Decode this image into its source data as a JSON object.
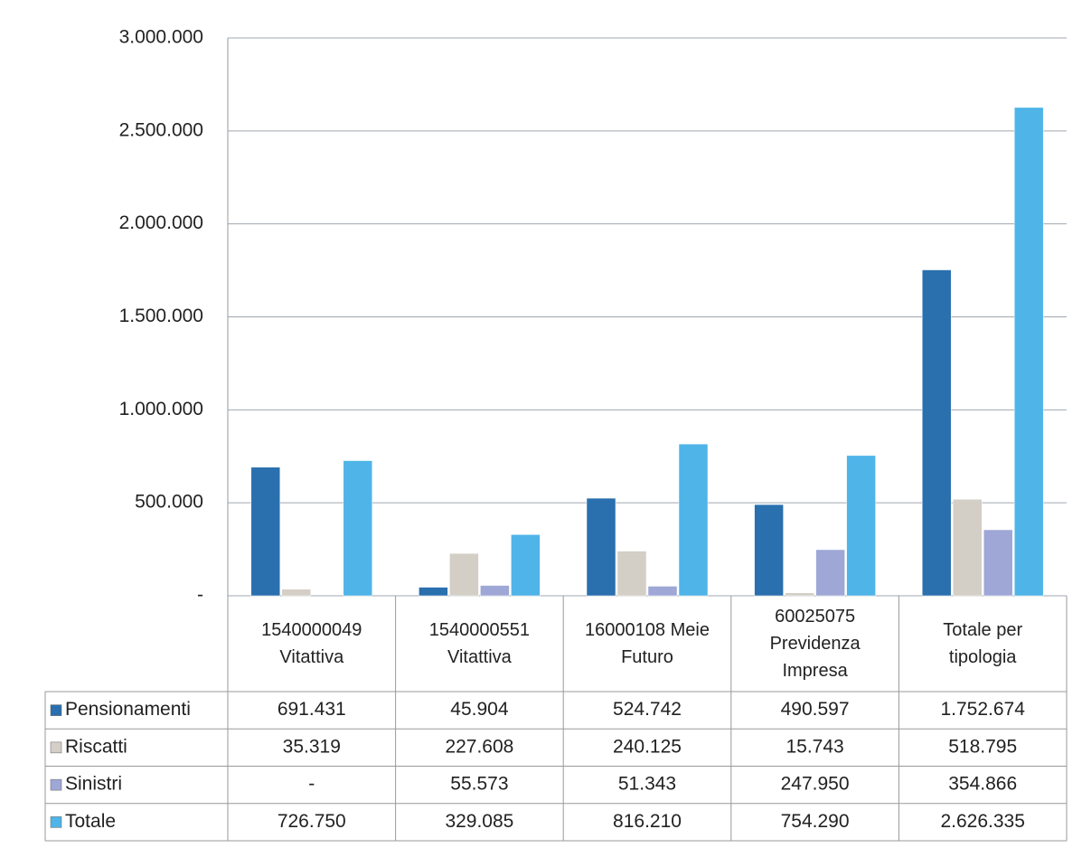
{
  "chart_data": {
    "type": "bar",
    "categories": [
      "1540000049 Vitattiva",
      "1540000551 Vitattiva",
      "16000108 Meie Futuro",
      "60025075 Previdenza Impresa",
      "Totale per tipologia"
    ],
    "series": [
      {
        "name": "Pensionamenti",
        "color": "#2a6fae",
        "values": [
          691431,
          45904,
          524742,
          490597,
          1752674
        ],
        "value_labels": [
          "691.431",
          "45.904",
          "524.742",
          "490.597",
          "1.752.674"
        ]
      },
      {
        "name": "Riscatti",
        "color": "#d3cec6",
        "values": [
          35319,
          227608,
          240125,
          15743,
          518795
        ],
        "value_labels": [
          "35.319",
          "227.608",
          "240.125",
          "15.743",
          "518.795"
        ]
      },
      {
        "name": "Sinistri",
        "color": "#9ea7d6",
        "values": [
          null,
          55573,
          51343,
          247950,
          354866
        ],
        "value_labels": [
          "-",
          "55.573",
          "51.343",
          "247.950",
          "354.866"
        ]
      },
      {
        "name": "Totale",
        "color": "#4fb4e8",
        "values": [
          726750,
          329085,
          816210,
          754290,
          2626335
        ],
        "value_labels": [
          "726.750",
          "329.085",
          "816.210",
          "754.290",
          "2.626.335"
        ]
      }
    ],
    "ylim": [
      0,
      3000000
    ],
    "yticks": [
      {
        "value": 0,
        "label": "-"
      },
      {
        "value": 500000,
        "label": "500.000"
      },
      {
        "value": 1000000,
        "label": "1.000.000"
      },
      {
        "value": 1500000,
        "label": "1.500.000"
      },
      {
        "value": 2000000,
        "label": "2.000.000"
      },
      {
        "value": 2500000,
        "label": "2.500.000"
      },
      {
        "value": 3000000,
        "label": "3.000.000"
      }
    ],
    "grid": true
  }
}
